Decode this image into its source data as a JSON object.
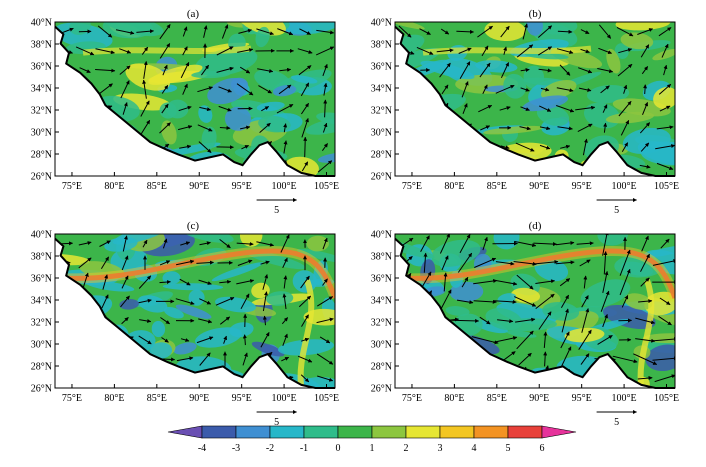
{
  "panels": [
    {
      "label": "(a)",
      "ref_vector_label": "5"
    },
    {
      "label": "(b)",
      "ref_vector_label": "5"
    },
    {
      "label": "(c)",
      "ref_vector_label": "5"
    },
    {
      "label": "(d)",
      "ref_vector_label": "5"
    }
  ],
  "axes": {
    "lat_ticks": [
      "26°N",
      "28°N",
      "30°N",
      "32°N",
      "34°N",
      "36°N",
      "38°N",
      "40°N"
    ],
    "lon_ticks": [
      "75°E",
      "80°E",
      "85°E",
      "90°E",
      "95°E",
      "100°E",
      "105°E"
    ]
  },
  "colorbar": {
    "ticks": [
      "-4",
      "-3",
      "-2",
      "-1",
      "0",
      "1",
      "2",
      "3",
      "4",
      "5",
      "6"
    ],
    "colors": [
      "#6a4fb3",
      "#3b5bab",
      "#3f8fd2",
      "#27b7c9",
      "#2fbc8a",
      "#3cb54a",
      "#8cc63f",
      "#e6e633",
      "#f3c622",
      "#f39323",
      "#e8413a",
      "#e6339b"
    ]
  }
}
